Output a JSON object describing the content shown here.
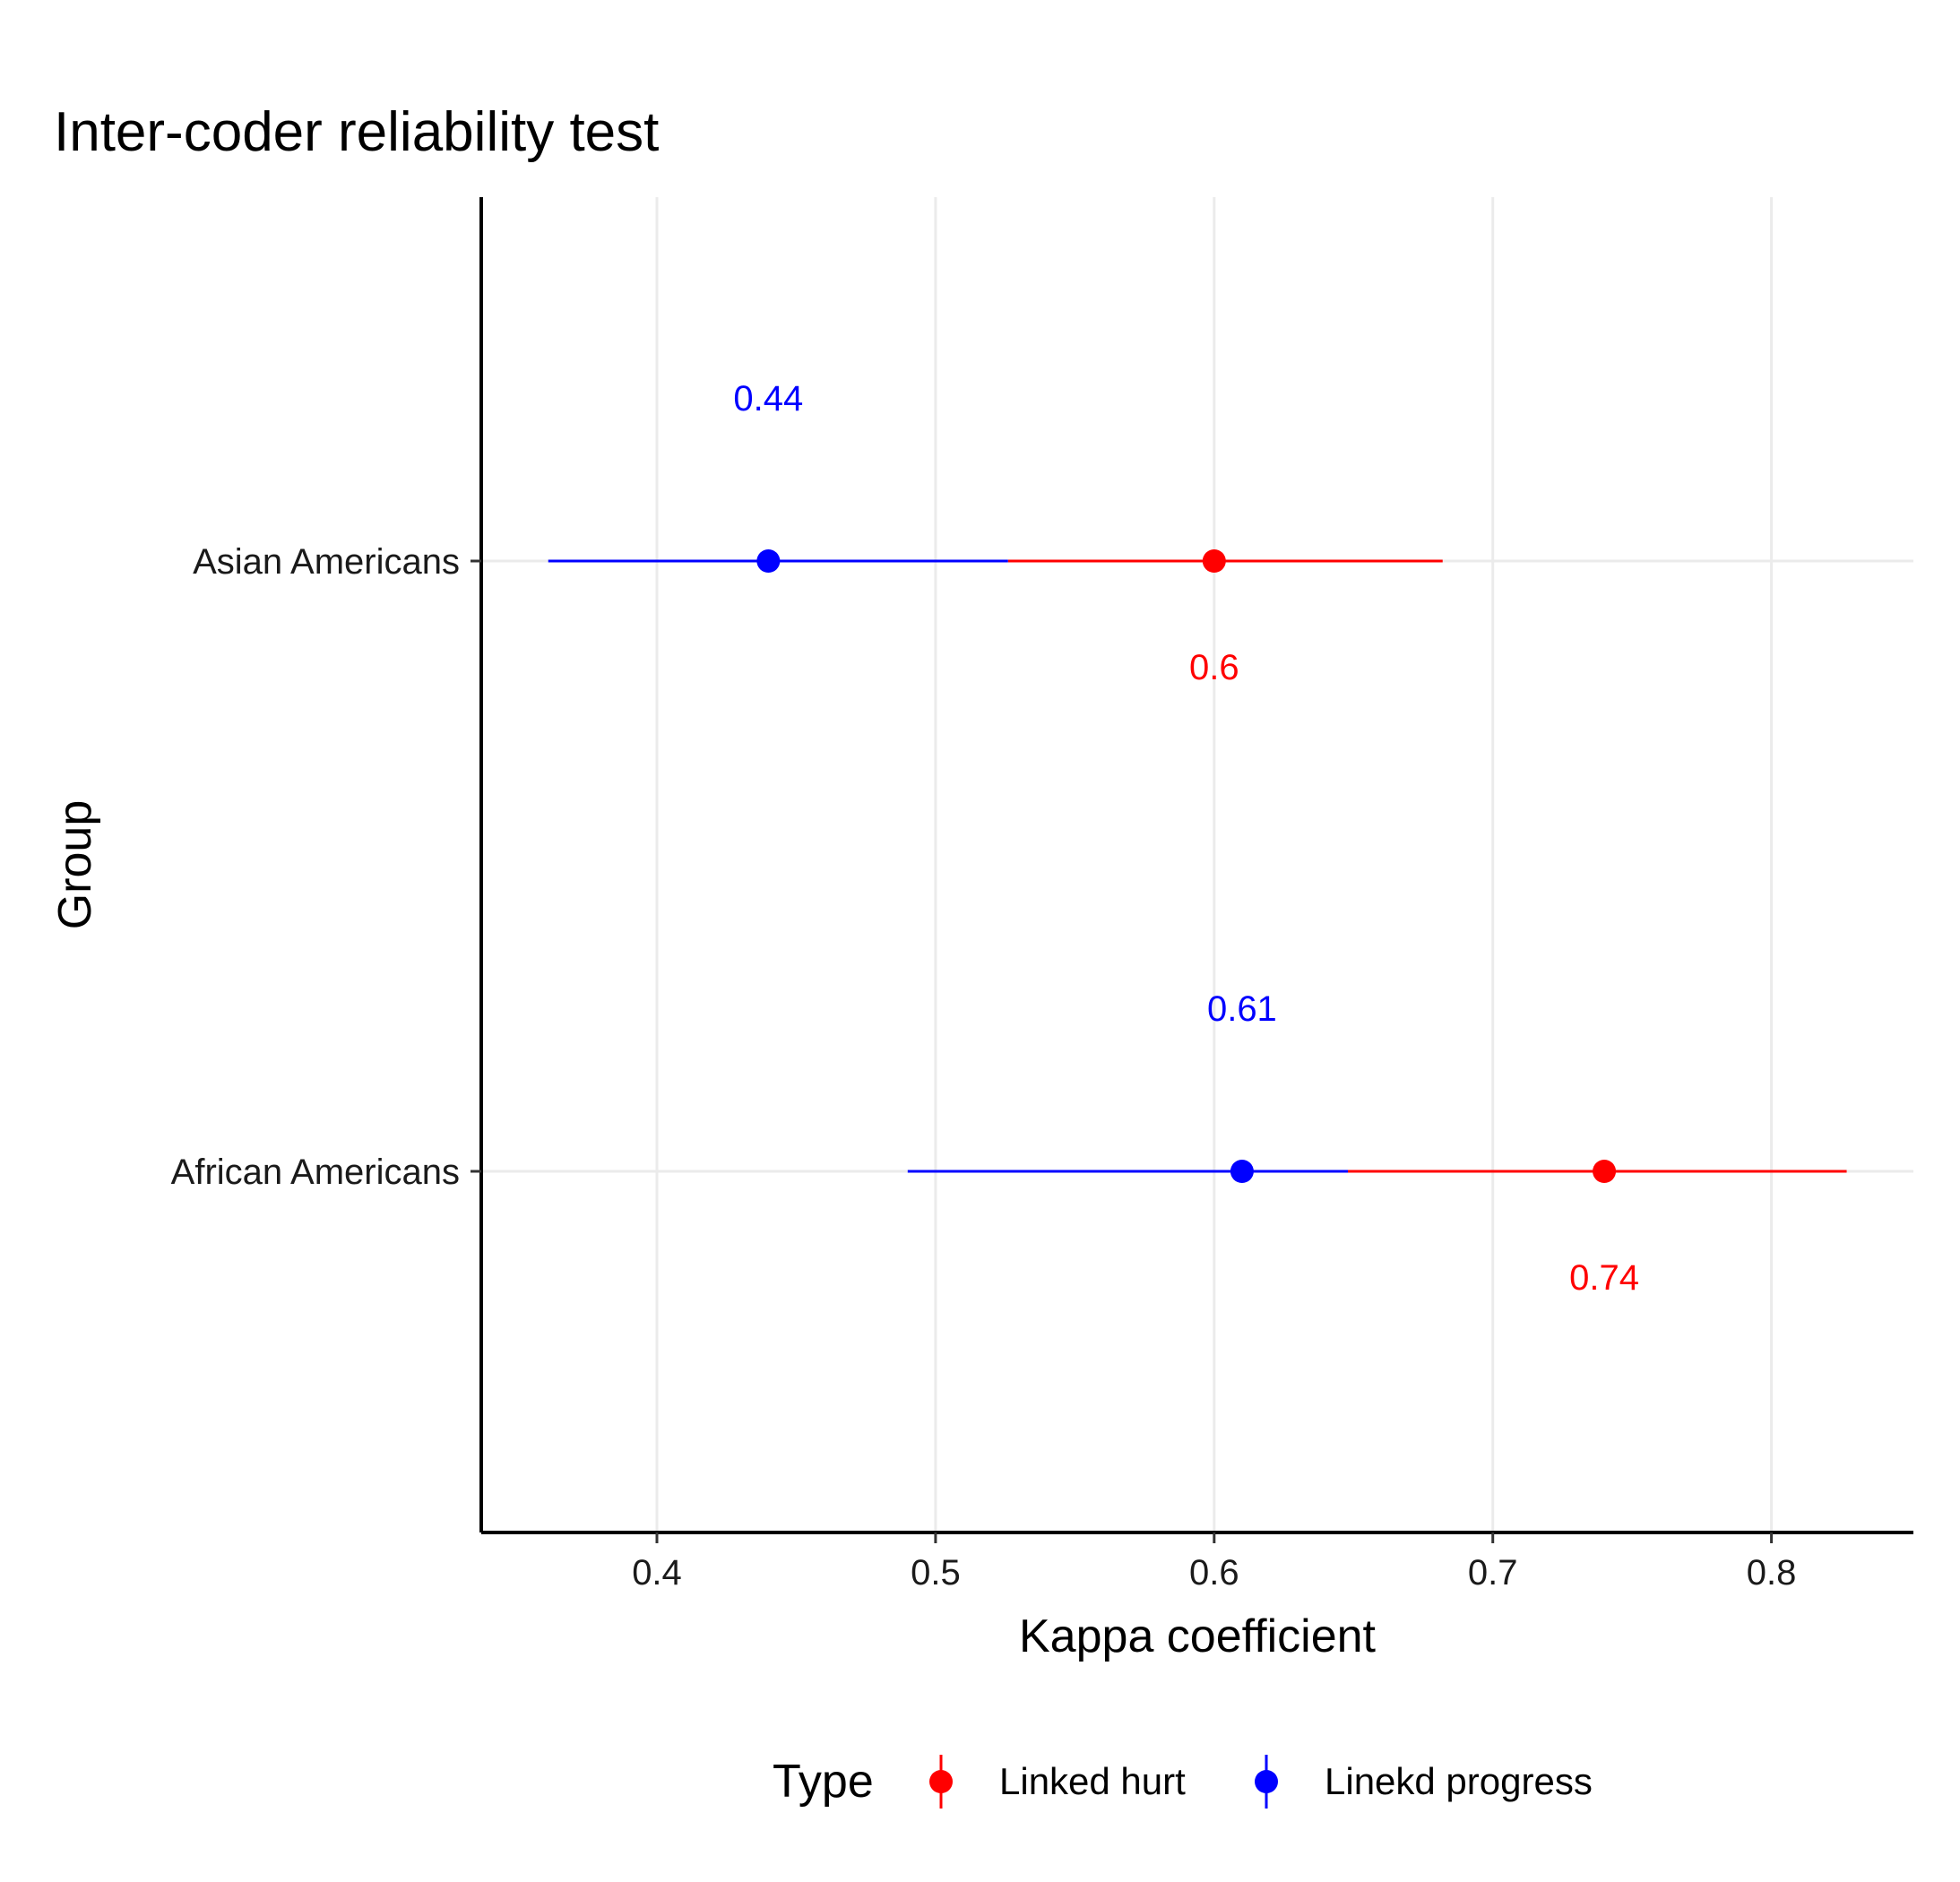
{
  "chart_data": {
    "type": "scatter",
    "title": "Inter-coder reliability test",
    "xlabel": "Kappa coefficient",
    "ylabel": "Group",
    "xlim": [
      0.337,
      0.85
    ],
    "x_ticks": [
      0.4,
      0.5,
      0.6,
      0.7,
      0.8
    ],
    "x_tick_labels": [
      "0.4",
      "0.5",
      "0.6",
      "0.7",
      "0.8"
    ],
    "categories": [
      "Asian Americans",
      "African Americans"
    ],
    "grid": true,
    "legend": {
      "title": "Type",
      "position": "bottom"
    },
    "series": [
      {
        "name": "Linked hurt",
        "color": "#ff0000",
        "points": [
          {
            "group": "Asian Americans",
            "value": 0.6,
            "lower": 0.526,
            "upper": 0.682,
            "label": "0.6"
          },
          {
            "group": "African Americans",
            "value": 0.74,
            "lower": 0.648,
            "upper": 0.827,
            "label": "0.74"
          }
        ]
      },
      {
        "name": "Linekd progress",
        "color": "#0000ff",
        "points": [
          {
            "group": "Asian Americans",
            "value": 0.44,
            "lower": 0.361,
            "upper": 0.526,
            "label": "0.44"
          },
          {
            "group": "African Americans",
            "value": 0.61,
            "lower": 0.49,
            "upper": 0.648,
            "label": "0.61"
          }
        ]
      }
    ]
  }
}
